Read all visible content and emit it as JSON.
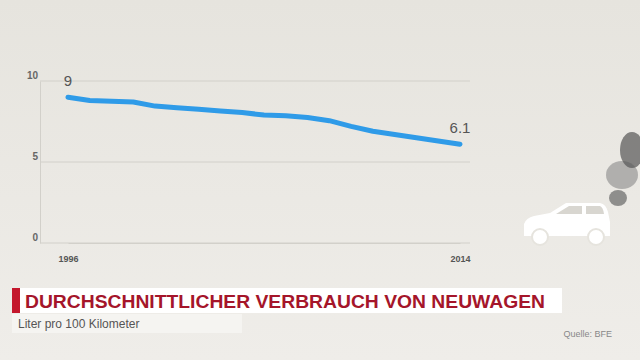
{
  "chart_data": {
    "type": "line",
    "title": "DURCHSCHNITTLICHER VERBRAUCH VON NEUWAGEN",
    "subtitle": "Liter pro 100 Kilometer",
    "source": "Quelle: BFE",
    "x": [
      1996,
      1997,
      1998,
      1999,
      2000,
      2001,
      2002,
      2003,
      2004,
      2005,
      2006,
      2007,
      2008,
      2009,
      2010,
      2011,
      2012,
      2013,
      2014
    ],
    "values": [
      9.0,
      8.8,
      8.75,
      8.7,
      8.45,
      8.35,
      8.25,
      8.15,
      8.05,
      7.9,
      7.85,
      7.75,
      7.55,
      7.2,
      6.9,
      6.7,
      6.5,
      6.3,
      6.1
    ],
    "color": "#2f9be8",
    "xlim": [
      1996,
      2014
    ],
    "xticks": [
      1996,
      2014
    ],
    "ylim": [
      0,
      10
    ],
    "yticks": [
      0,
      5,
      10
    ],
    "grid": true,
    "annotations": [
      {
        "text": "9",
        "x": 1996,
        "y": 9
      },
      {
        "text": "6.1",
        "x": 2014,
        "y": 6.1
      }
    ]
  }
}
